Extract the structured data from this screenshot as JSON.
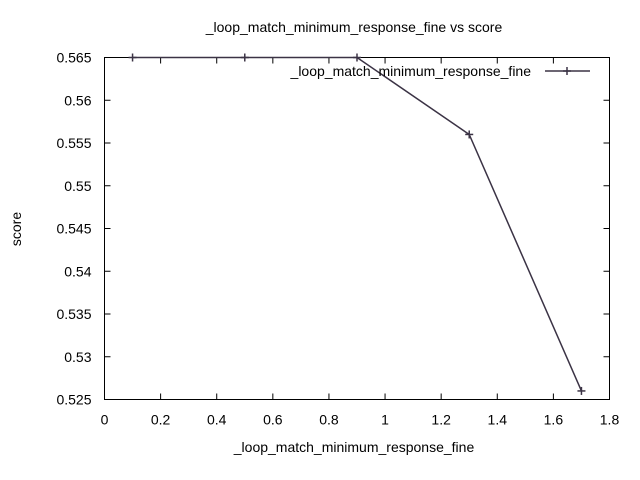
{
  "chart_data": {
    "type": "line",
    "title": "_loop_match_minimum_response_fine vs score",
    "xlabel": "_loop_match_minimum_response_fine",
    "ylabel": "score",
    "xlim": [
      0,
      1.8
    ],
    "ylim": [
      0.525,
      0.565
    ],
    "x_ticks": [
      "0",
      "0.2",
      "0.4",
      "0.6",
      "0.8",
      "1",
      "1.2",
      "1.4",
      "1.6",
      "1.8"
    ],
    "y_ticks": [
      "0.525",
      "0.53",
      "0.535",
      "0.54",
      "0.545",
      "0.55",
      "0.555",
      "0.56",
      "0.565"
    ],
    "legend_position": "top-right",
    "grid": false,
    "series": [
      {
        "name": "_loop_match_minimum_response_fine",
        "color": "#3b3345",
        "marker": "plus",
        "x": [
          0.1,
          0.5,
          0.9,
          1.3,
          1.7
        ],
        "y": [
          0.565,
          0.565,
          0.565,
          0.556,
          0.526
        ]
      }
    ]
  }
}
